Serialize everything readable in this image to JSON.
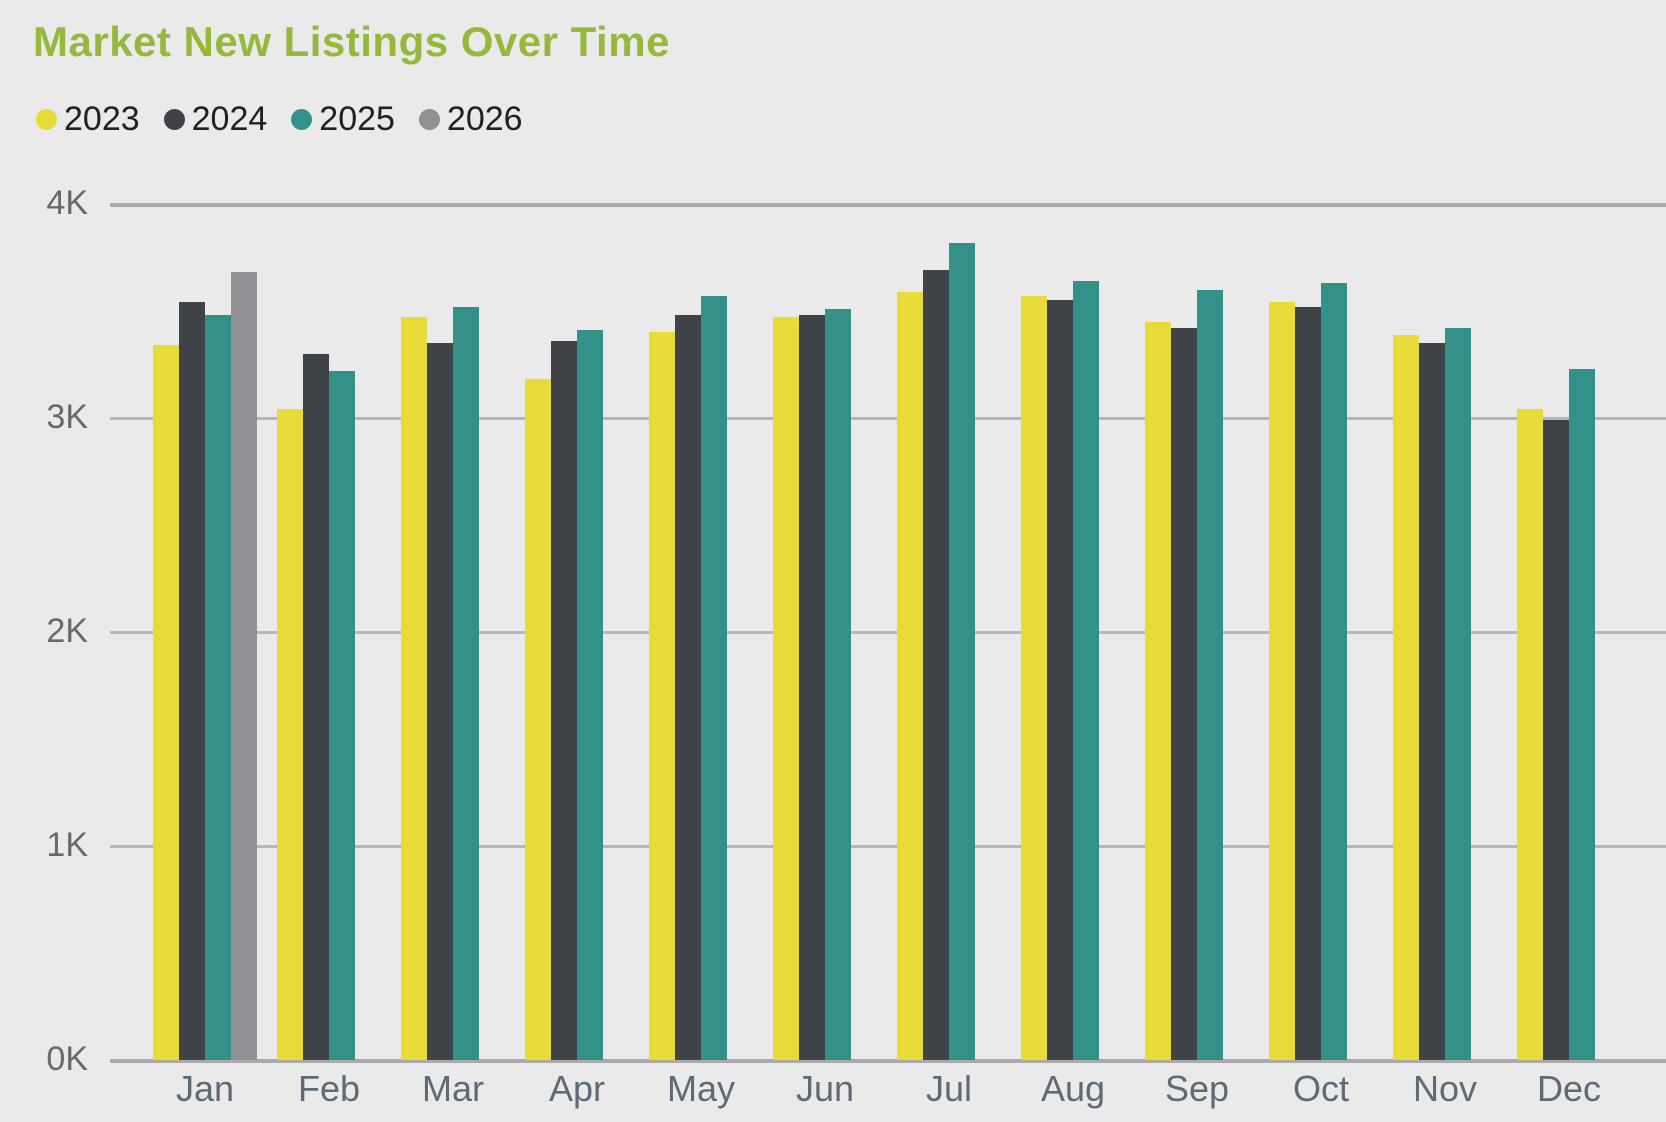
{
  "chart_data": {
    "type": "bar",
    "title": "Market New Listings Over Time",
    "categories": [
      "Jan",
      "Feb",
      "Mar",
      "Apr",
      "May",
      "Jun",
      "Jul",
      "Aug",
      "Sep",
      "Oct",
      "Nov",
      "Dec"
    ],
    "series": [
      {
        "name": "2023",
        "color": "#E8DA38",
        "values": [
          3340,
          3040,
          3470,
          3180,
          3400,
          3470,
          3590,
          3570,
          3450,
          3540,
          3390,
          3040
        ]
      },
      {
        "name": "2024",
        "color": "#3F4347",
        "values": [
          3540,
          3300,
          3350,
          3360,
          3480,
          3480,
          3690,
          3550,
          3420,
          3520,
          3350,
          2990
        ]
      },
      {
        "name": "2025",
        "color": "#33918A",
        "values": [
          3480,
          3220,
          3520,
          3410,
          3570,
          3510,
          3820,
          3640,
          3600,
          3630,
          3420,
          3230
        ]
      },
      {
        "name": "2026",
        "color": "#8F9194",
        "values": [
          3680,
          null,
          null,
          null,
          null,
          null,
          null,
          null,
          null,
          null,
          null,
          null
        ]
      }
    ],
    "y_tick_labels": [
      "4K",
      "3K",
      "2K",
      "1K",
      "0K"
    ],
    "ylim": [
      0,
      4000
    ],
    "grid": true,
    "legend_position": "top-left",
    "colors": {
      "title_green": "#95B83D",
      "background": "#EAEAEA",
      "gridline": "#B7B7B7",
      "axis_label": "#66696E"
    }
  }
}
